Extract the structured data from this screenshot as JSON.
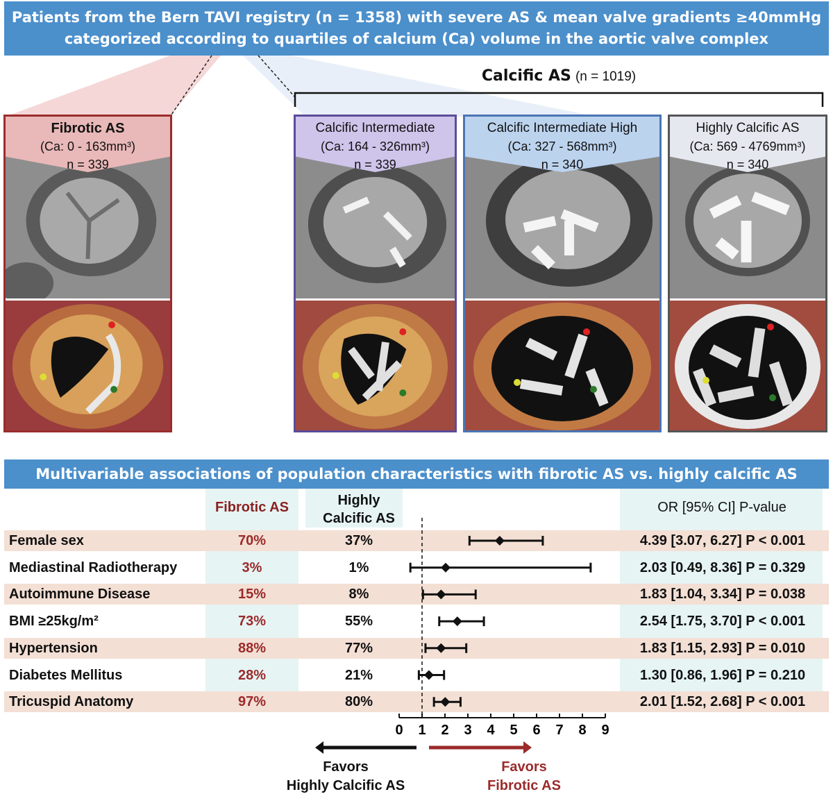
{
  "top_banner": {
    "line1": "Patients from the Bern TAVI registry (n = 1358) with severe AS & mean valve gradients ≥40mmHg",
    "line2": "categorized according to quartiles of calcium (Ca) volume in the aortic valve complex"
  },
  "calcific_group": {
    "title": "Calcific AS",
    "n": "(n = 1019)"
  },
  "panels": [
    {
      "name": "Fibrotic AS",
      "ca": "(Ca: 0 - 163mm³)",
      "n": "n = 339",
      "color": "#9b2c2c"
    },
    {
      "name": "Calcific Intermediate",
      "ca": "(Ca: 164 - 326mm³)",
      "n": "n = 339",
      "color": "#5a4c9a"
    },
    {
      "name": "Calcific Intermediate High",
      "ca": "(Ca: 327 - 568mm³)",
      "n": "n = 340",
      "color": "#4a75b5"
    },
    {
      "name": "Highly Calcific AS",
      "ca": "(Ca: 569 - 4769mm³)",
      "n": "n = 340",
      "color": "#555555"
    }
  ],
  "mid_banner": "Multivariable associations of population characteristics with fibrotic  AS vs. highly calcific AS",
  "table": {
    "col_fibrotic": "Fibrotic AS",
    "col_highly_line1": "Highly",
    "col_highly_line2": "Calcific AS",
    "col_or": "OR [95% CI] P-value"
  },
  "chart_data": {
    "type": "forest",
    "x_ticks": [
      0,
      1,
      2,
      3,
      4,
      5,
      6,
      7,
      8,
      9
    ],
    "xlim": [
      0,
      9
    ],
    "reference_line": 1,
    "rows": [
      {
        "label": "Female sex",
        "fibrotic": "70%",
        "highly": "37%",
        "or": 4.39,
        "lo": 3.07,
        "hi": 6.27,
        "or_text": "4.39 [3.07, 6.27] P < 0.001"
      },
      {
        "label": "Mediastinal Radiotherapy",
        "fibrotic": "3%",
        "highly": "1%",
        "or": 2.03,
        "lo": 0.49,
        "hi": 8.36,
        "or_text": "2.03 [0.49, 8.36] P = 0.329"
      },
      {
        "label": "Autoimmune Disease",
        "fibrotic": "15%",
        "highly": "8%",
        "or": 1.83,
        "lo": 1.04,
        "hi": 3.34,
        "or_text": "1.83 [1.04, 3.34] P = 0.038"
      },
      {
        "label": "BMI ≥25kg/m²",
        "fibrotic": "73%",
        "highly": "55%",
        "or": 2.54,
        "lo": 1.75,
        "hi": 3.7,
        "or_text": "2.54 [1.75, 3.70] P < 0.001"
      },
      {
        "label": "Hypertension",
        "fibrotic": "88%",
        "highly": "77%",
        "or": 1.83,
        "lo": 1.15,
        "hi": 2.93,
        "or_text": "1.83 [1.15, 2.93] P = 0.010"
      },
      {
        "label": "Diabetes Mellitus",
        "fibrotic": "28%",
        "highly": "21%",
        "or": 1.3,
        "lo": 0.86,
        "hi": 1.96,
        "or_text": "1.30 [0.86, 1.96] P = 0.210"
      },
      {
        "label": "Tricuspid Anatomy",
        "fibrotic": "97%",
        "highly": "80%",
        "or": 2.01,
        "lo": 1.52,
        "hi": 2.68,
        "or_text": "2.01 [1.52, 2.68] P < 0.001"
      }
    ]
  },
  "favors": {
    "left_line1": "Favors",
    "left_line2": "Highly Calcific AS",
    "right_line1": "Favors",
    "right_line2": "Fibrotic AS",
    "left_color": "#111111",
    "right_color": "#9b2a2a"
  }
}
